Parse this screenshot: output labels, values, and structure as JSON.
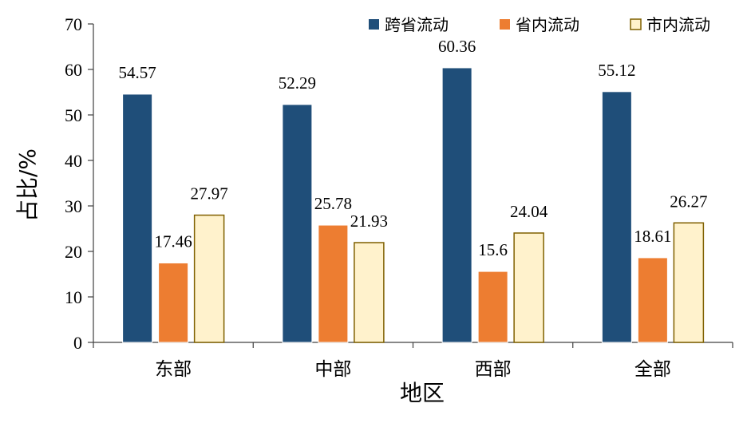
{
  "chart_data": {
    "type": "bar",
    "xlabel": "地区",
    "ylabel": "占比/%",
    "ylim": [
      0,
      70
    ],
    "yticks": [
      0,
      10,
      20,
      30,
      40,
      50,
      60,
      70
    ],
    "categories": [
      "东部",
      "中部",
      "西部",
      "全部"
    ],
    "series": [
      {
        "name": "跨省流动",
        "color": "#1f4e79",
        "values": [
          54.57,
          52.29,
          60.36,
          55.12
        ],
        "labels": [
          "54.57",
          "52.29",
          "60.36",
          "55.12"
        ]
      },
      {
        "name": "省内流动",
        "color": "#ed7d31",
        "values": [
          17.46,
          25.78,
          15.6,
          18.61
        ],
        "labels": [
          "17.46",
          "25.78",
          "15.6",
          "18.61"
        ]
      },
      {
        "name": "市内流动",
        "color": "#fff2cc",
        "stroke": "#7f6000",
        "values": [
          27.97,
          21.93,
          24.04,
          26.27
        ],
        "labels": [
          "27.97",
          "21.93",
          "24.04",
          "26.27"
        ]
      }
    ],
    "legend_position": "top-right",
    "grid": false
  }
}
